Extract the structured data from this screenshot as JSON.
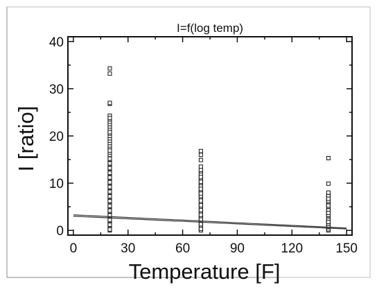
{
  "chart_data": {
    "type": "scatter",
    "title": "I=f(log temp)",
    "xlabel": "Temperature [F]",
    "ylabel": "I [ratio]",
    "xlim": [
      -3,
      153
    ],
    "ylim": [
      -1,
      41
    ],
    "x_ticks": [
      0,
      30,
      60,
      90,
      120,
      150
    ],
    "x_tick_labels": [
      "0",
      "30",
      "60",
      "90",
      "120",
      "150"
    ],
    "y_ticks": [
      0,
      10,
      20,
      30,
      40
    ],
    "y_tick_labels": [
      "0",
      "10",
      "20",
      "30",
      "40"
    ],
    "grid": false,
    "legend": "none",
    "series": [
      {
        "marker": "open-square",
        "x": [
          20,
          20,
          20,
          20,
          20,
          20,
          20,
          20,
          20,
          20,
          20,
          20,
          20,
          20,
          20,
          20,
          20,
          20,
          20,
          20,
          20,
          20,
          20,
          20,
          20,
          20,
          20,
          20,
          20,
          20,
          20,
          20,
          20,
          20,
          20,
          20,
          20,
          20,
          20,
          20,
          20,
          20,
          20,
          20,
          20,
          20,
          20,
          20,
          20,
          20,
          20,
          20,
          20,
          20,
          20,
          20,
          20,
          20,
          20,
          20,
          20,
          20,
          20,
          20,
          20,
          20,
          20,
          20,
          20,
          20,
          20,
          20,
          20,
          70,
          70,
          70,
          70,
          70,
          70,
          70,
          70,
          70,
          70,
          70,
          70,
          70,
          70,
          70,
          70,
          70,
          70,
          70,
          70,
          70,
          70,
          70,
          70,
          70,
          70,
          70,
          70,
          70,
          70,
          70,
          70,
          70,
          70,
          70,
          70,
          70,
          70,
          70,
          70,
          70,
          70,
          70,
          70,
          70,
          140,
          140,
          140,
          140,
          140,
          140,
          140,
          140,
          140,
          140,
          140,
          140,
          140,
          140,
          140,
          140,
          140,
          140,
          140,
          140,
          140,
          140,
          140,
          140,
          140,
          140,
          140,
          140,
          140,
          140,
          140
        ],
        "y": [
          0,
          0.5,
          1,
          1.5,
          2,
          2.5,
          3,
          3.5,
          4,
          4.5,
          5,
          5.5,
          6,
          6.5,
          7,
          7.5,
          8,
          8.5,
          9,
          9.5,
          10,
          10.5,
          11,
          11.5,
          12,
          12.5,
          13,
          13.5,
          14,
          14.5,
          15,
          15.5,
          16,
          16.5,
          17,
          17.5,
          18,
          18.5,
          19,
          19.5,
          20,
          20.5,
          21,
          21.5,
          22,
          22.5,
          23,
          23.5,
          24,
          0.2,
          1.2,
          2.2,
          3.2,
          4.2,
          5.2,
          6.2,
          7.2,
          8.2,
          9.2,
          10.2,
          11.2,
          12.2,
          13.2,
          14.2,
          15.2,
          26.8,
          27,
          33.2,
          34.3,
          24.3,
          23.8,
          20.8,
          16.9,
          0,
          0.5,
          1,
          1.5,
          2,
          2.5,
          3,
          3.5,
          4,
          4.5,
          5,
          5.5,
          6,
          6.5,
          7,
          7.5,
          8,
          8.5,
          9,
          9.5,
          10,
          10.5,
          11,
          11.5,
          12,
          12.5,
          0.3,
          1.3,
          2.3,
          3.3,
          4.3,
          5.3,
          6.3,
          7.3,
          8.3,
          9.3,
          10.3,
          11.3,
          12.8,
          13.5,
          14.9,
          16,
          16.8,
          8.8,
          7.8,
          0,
          0.5,
          1,
          1.5,
          2,
          2.5,
          3,
          3.5,
          4,
          4.5,
          5,
          5.5,
          6,
          6.5,
          7,
          7.5,
          8,
          0.25,
          1.25,
          2.25,
          3.25,
          4.25,
          5.25,
          6.25,
          7.25,
          9.9,
          15.3,
          0.7,
          3.7,
          6.7,
          1.8
        ]
      }
    ],
    "trendlines": [
      {
        "style": "line",
        "x": [
          0,
          150
        ],
        "y": [
          3.0,
          0.3
        ]
      },
      {
        "style": "line",
        "x": [
          0,
          150
        ],
        "y": [
          3.3,
          0.5
        ]
      }
    ]
  }
}
